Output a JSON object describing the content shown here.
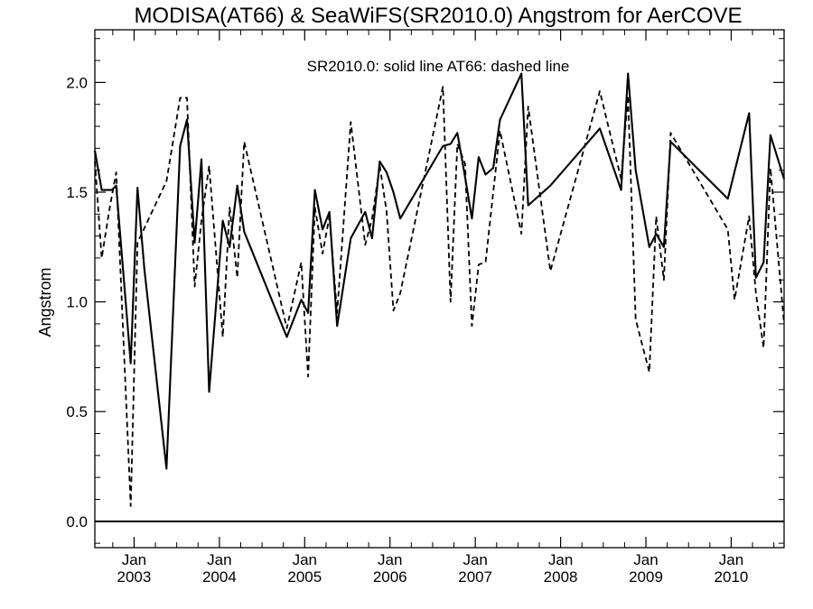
{
  "chart_data": {
    "type": "line",
    "title": "MODISA(AT66) & SeaWiFS(SR2010.0)  Angstrom for AerCOVE",
    "ylabel": "Angstrom",
    "xlabel": "",
    "annotation": "SR2010.0: solid line   AT66: dashed line",
    "ylim": [
      -0.12,
      2.24
    ],
    "xlim": [
      2002.54,
      2010.62
    ],
    "y_ticks": [
      0.0,
      0.5,
      1.0,
      1.5,
      2.0
    ],
    "y_tick_labels": [
      "0.0",
      "0.5",
      "1.0",
      "1.5",
      "2.0"
    ],
    "x_ticks": [
      2003,
      2004,
      2005,
      2006,
      2007,
      2008,
      2009,
      2010
    ],
    "x_month_label": "Jan",
    "x_year_labels": [
      "2003",
      "2004",
      "2005",
      "2006",
      "2007",
      "2008",
      "2009",
      "2010"
    ],
    "reference_line_y": 0.0,
    "grid": false,
    "series": [
      {
        "name": "SR2010.0",
        "style": "solid",
        "color": "#000000",
        "points": [
          [
            2002.54,
            1.69
          ],
          [
            2002.62,
            1.51
          ],
          [
            2002.74,
            1.51
          ],
          [
            2002.79,
            1.53
          ],
          [
            2002.96,
            0.72
          ],
          [
            2003.04,
            1.52
          ],
          [
            2003.12,
            1.15
          ],
          [
            2003.38,
            0.24
          ],
          [
            2003.54,
            1.71
          ],
          [
            2003.62,
            1.83
          ],
          [
            2003.71,
            1.27
          ],
          [
            2003.79,
            1.65
          ],
          [
            2003.88,
            0.59
          ],
          [
            2004.04,
            1.37
          ],
          [
            2004.12,
            1.25
          ],
          [
            2004.21,
            1.53
          ],
          [
            2004.29,
            1.32
          ],
          [
            2004.79,
            0.84
          ],
          [
            2004.96,
            1.01
          ],
          [
            2005.04,
            0.95
          ],
          [
            2005.12,
            1.51
          ],
          [
            2005.21,
            1.33
          ],
          [
            2005.29,
            1.41
          ],
          [
            2005.38,
            0.89
          ],
          [
            2005.54,
            1.29
          ],
          [
            2005.71,
            1.41
          ],
          [
            2005.79,
            1.29
          ],
          [
            2005.88,
            1.64
          ],
          [
            2005.96,
            1.59
          ],
          [
            2006.04,
            1.5
          ],
          [
            2006.12,
            1.38
          ],
          [
            2006.62,
            1.71
          ],
          [
            2006.71,
            1.72
          ],
          [
            2006.79,
            1.77
          ],
          [
            2006.88,
            1.57
          ],
          [
            2006.96,
            1.38
          ],
          [
            2007.04,
            1.66
          ],
          [
            2007.12,
            1.58
          ],
          [
            2007.21,
            1.61
          ],
          [
            2007.29,
            1.83
          ],
          [
            2007.54,
            2.04
          ],
          [
            2007.62,
            1.44
          ],
          [
            2007.88,
            1.53
          ],
          [
            2008.46,
            1.79
          ],
          [
            2008.71,
            1.51
          ],
          [
            2008.79,
            2.04
          ],
          [
            2008.88,
            1.6
          ],
          [
            2009.04,
            1.25
          ],
          [
            2009.12,
            1.31
          ],
          [
            2009.21,
            1.25
          ],
          [
            2009.29,
            1.73
          ],
          [
            2009.96,
            1.47
          ],
          [
            2010.21,
            1.86
          ],
          [
            2010.29,
            1.11
          ],
          [
            2010.38,
            1.18
          ],
          [
            2010.46,
            1.76
          ],
          [
            2010.62,
            1.56
          ]
        ]
      },
      {
        "name": "AT66",
        "style": "dashed",
        "color": "#000000",
        "points": [
          [
            2002.54,
            1.64
          ],
          [
            2002.62,
            1.2
          ],
          [
            2002.71,
            1.42
          ],
          [
            2002.79,
            1.59
          ],
          [
            2002.96,
            0.07
          ],
          [
            2003.04,
            1.27
          ],
          [
            2003.38,
            1.55
          ],
          [
            2003.54,
            1.93
          ],
          [
            2003.62,
            1.93
          ],
          [
            2003.71,
            1.07
          ],
          [
            2003.79,
            1.37
          ],
          [
            2003.88,
            1.62
          ],
          [
            2004.04,
            0.84
          ],
          [
            2004.12,
            1.43
          ],
          [
            2004.21,
            1.11
          ],
          [
            2004.29,
            1.73
          ],
          [
            2004.79,
            0.88
          ],
          [
            2004.96,
            1.18
          ],
          [
            2005.04,
            0.66
          ],
          [
            2005.12,
            1.43
          ],
          [
            2005.21,
            1.22
          ],
          [
            2005.29,
            1.39
          ],
          [
            2005.38,
            0.95
          ],
          [
            2005.54,
            1.82
          ],
          [
            2005.71,
            1.26
          ],
          [
            2005.79,
            1.38
          ],
          [
            2005.88,
            1.62
          ],
          [
            2005.96,
            1.41
          ],
          [
            2006.04,
            0.96
          ],
          [
            2006.12,
            1.04
          ],
          [
            2006.62,
            1.98
          ],
          [
            2006.71,
            1.0
          ],
          [
            2006.79,
            1.72
          ],
          [
            2006.88,
            1.63
          ],
          [
            2006.96,
            0.89
          ],
          [
            2007.04,
            1.17
          ],
          [
            2007.12,
            1.18
          ],
          [
            2007.29,
            1.78
          ],
          [
            2007.54,
            1.31
          ],
          [
            2007.62,
            1.89
          ],
          [
            2007.88,
            1.14
          ],
          [
            2008.46,
            1.96
          ],
          [
            2008.71,
            1.56
          ],
          [
            2008.79,
            1.94
          ],
          [
            2008.88,
            0.92
          ],
          [
            2009.04,
            0.68
          ],
          [
            2009.12,
            1.39
          ],
          [
            2009.21,
            1.1
          ],
          [
            2009.29,
            1.77
          ],
          [
            2009.96,
            1.33
          ],
          [
            2010.04,
            1.01
          ],
          [
            2010.21,
            1.39
          ],
          [
            2010.29,
            1.04
          ],
          [
            2010.38,
            0.79
          ],
          [
            2010.46,
            1.61
          ],
          [
            2010.62,
            0.9
          ]
        ]
      }
    ]
  }
}
